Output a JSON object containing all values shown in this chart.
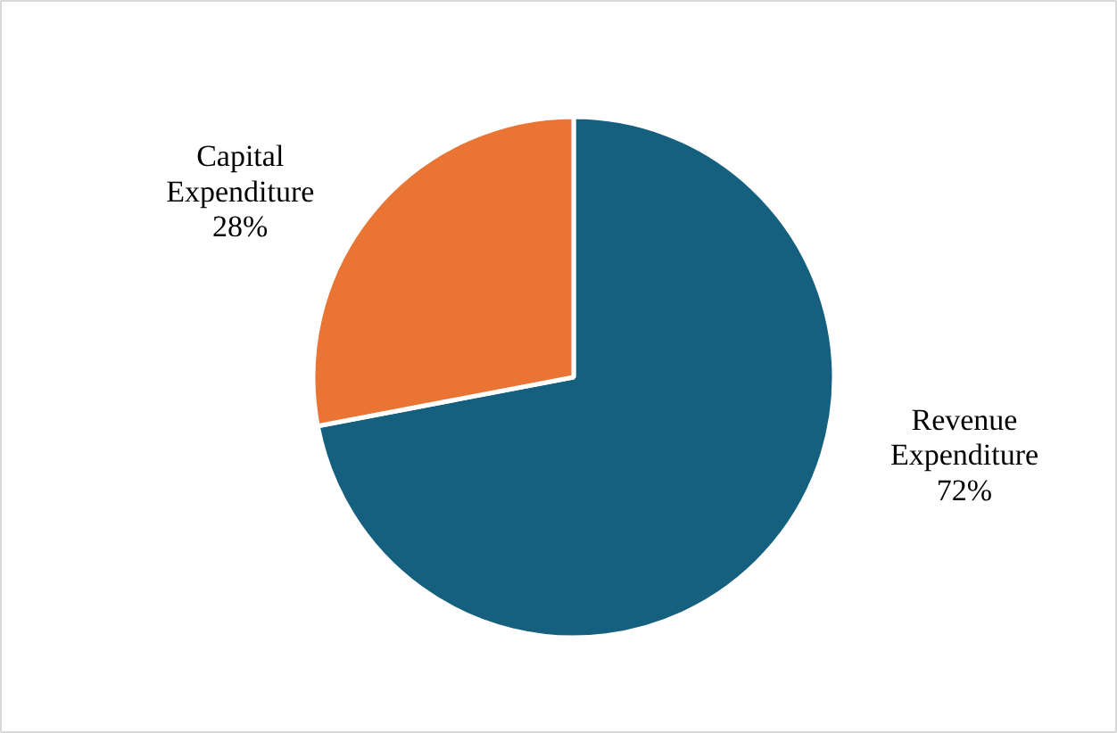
{
  "chart_data": {
    "type": "pie",
    "categories": [
      "Revenue Expenditure",
      "Capital Expenditure"
    ],
    "values": [
      72,
      28
    ],
    "colors": [
      "#15607f",
      "#e97434"
    ],
    "value_labels": [
      "72%",
      "28%"
    ]
  }
}
